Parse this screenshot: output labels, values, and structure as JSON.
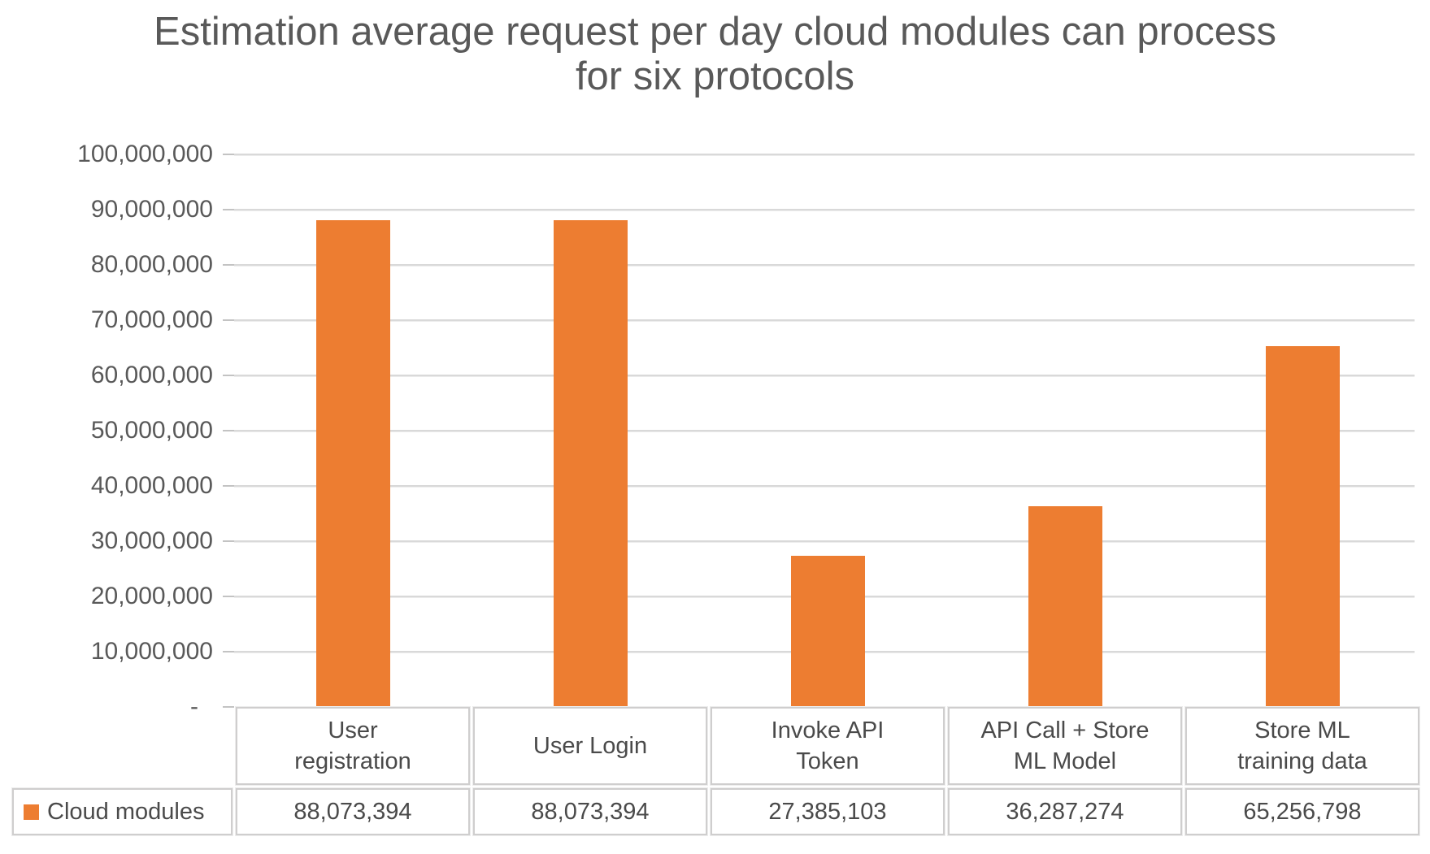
{
  "chart_data": {
    "type": "bar",
    "title": "Estimation average request per day cloud modules can process for six protocols",
    "title_lines": [
      "Estimation average request per day cloud modules can process",
      "for six protocols"
    ],
    "categories": [
      "User registration",
      "User Login",
      "Invoke API Token",
      "API Call + Store ML Model",
      "Store ML training data"
    ],
    "category_labels": [
      "User\nregistration",
      "User Login",
      "Invoke API\nToken",
      "API Call + Store\nML Model",
      "Store ML\ntraining data"
    ],
    "series": [
      {
        "name": "Cloud modules",
        "values": [
          88073394,
          88073394,
          27385103,
          36287274,
          65256798
        ]
      }
    ],
    "value_labels": [
      "88,073,394",
      "88,073,394",
      "27,385,103",
      "36,287,274",
      "65,256,798"
    ],
    "xlabel": "",
    "ylabel": "",
    "ylim": [
      0,
      100000000
    ],
    "ytick_interval": 10000000,
    "yticks": [
      {
        "label": "100,000,000",
        "value": 100000000
      },
      {
        "label": "90,000,000",
        "value": 90000000
      },
      {
        "label": "80,000,000",
        "value": 80000000
      },
      {
        "label": "70,000,000",
        "value": 70000000
      },
      {
        "label": "60,000,000",
        "value": 60000000
      },
      {
        "label": "50,000,000",
        "value": 50000000
      },
      {
        "label": "40,000,000",
        "value": 40000000
      },
      {
        "label": "30,000,000",
        "value": 30000000
      },
      {
        "label": "20,000,000",
        "value": 20000000
      },
      {
        "label": "10,000,000",
        "value": 10000000
      },
      {
        "label": "-",
        "value": 0
      }
    ],
    "grid": true,
    "legend_position": "data-table-left"
  },
  "colors": {
    "bar": "#ED7D31",
    "gridline": "#D9D9D9",
    "title_text": "#595959",
    "axis_text": "#595959",
    "table_border": "#CFCECE",
    "table_text": "#4A4A4A"
  }
}
